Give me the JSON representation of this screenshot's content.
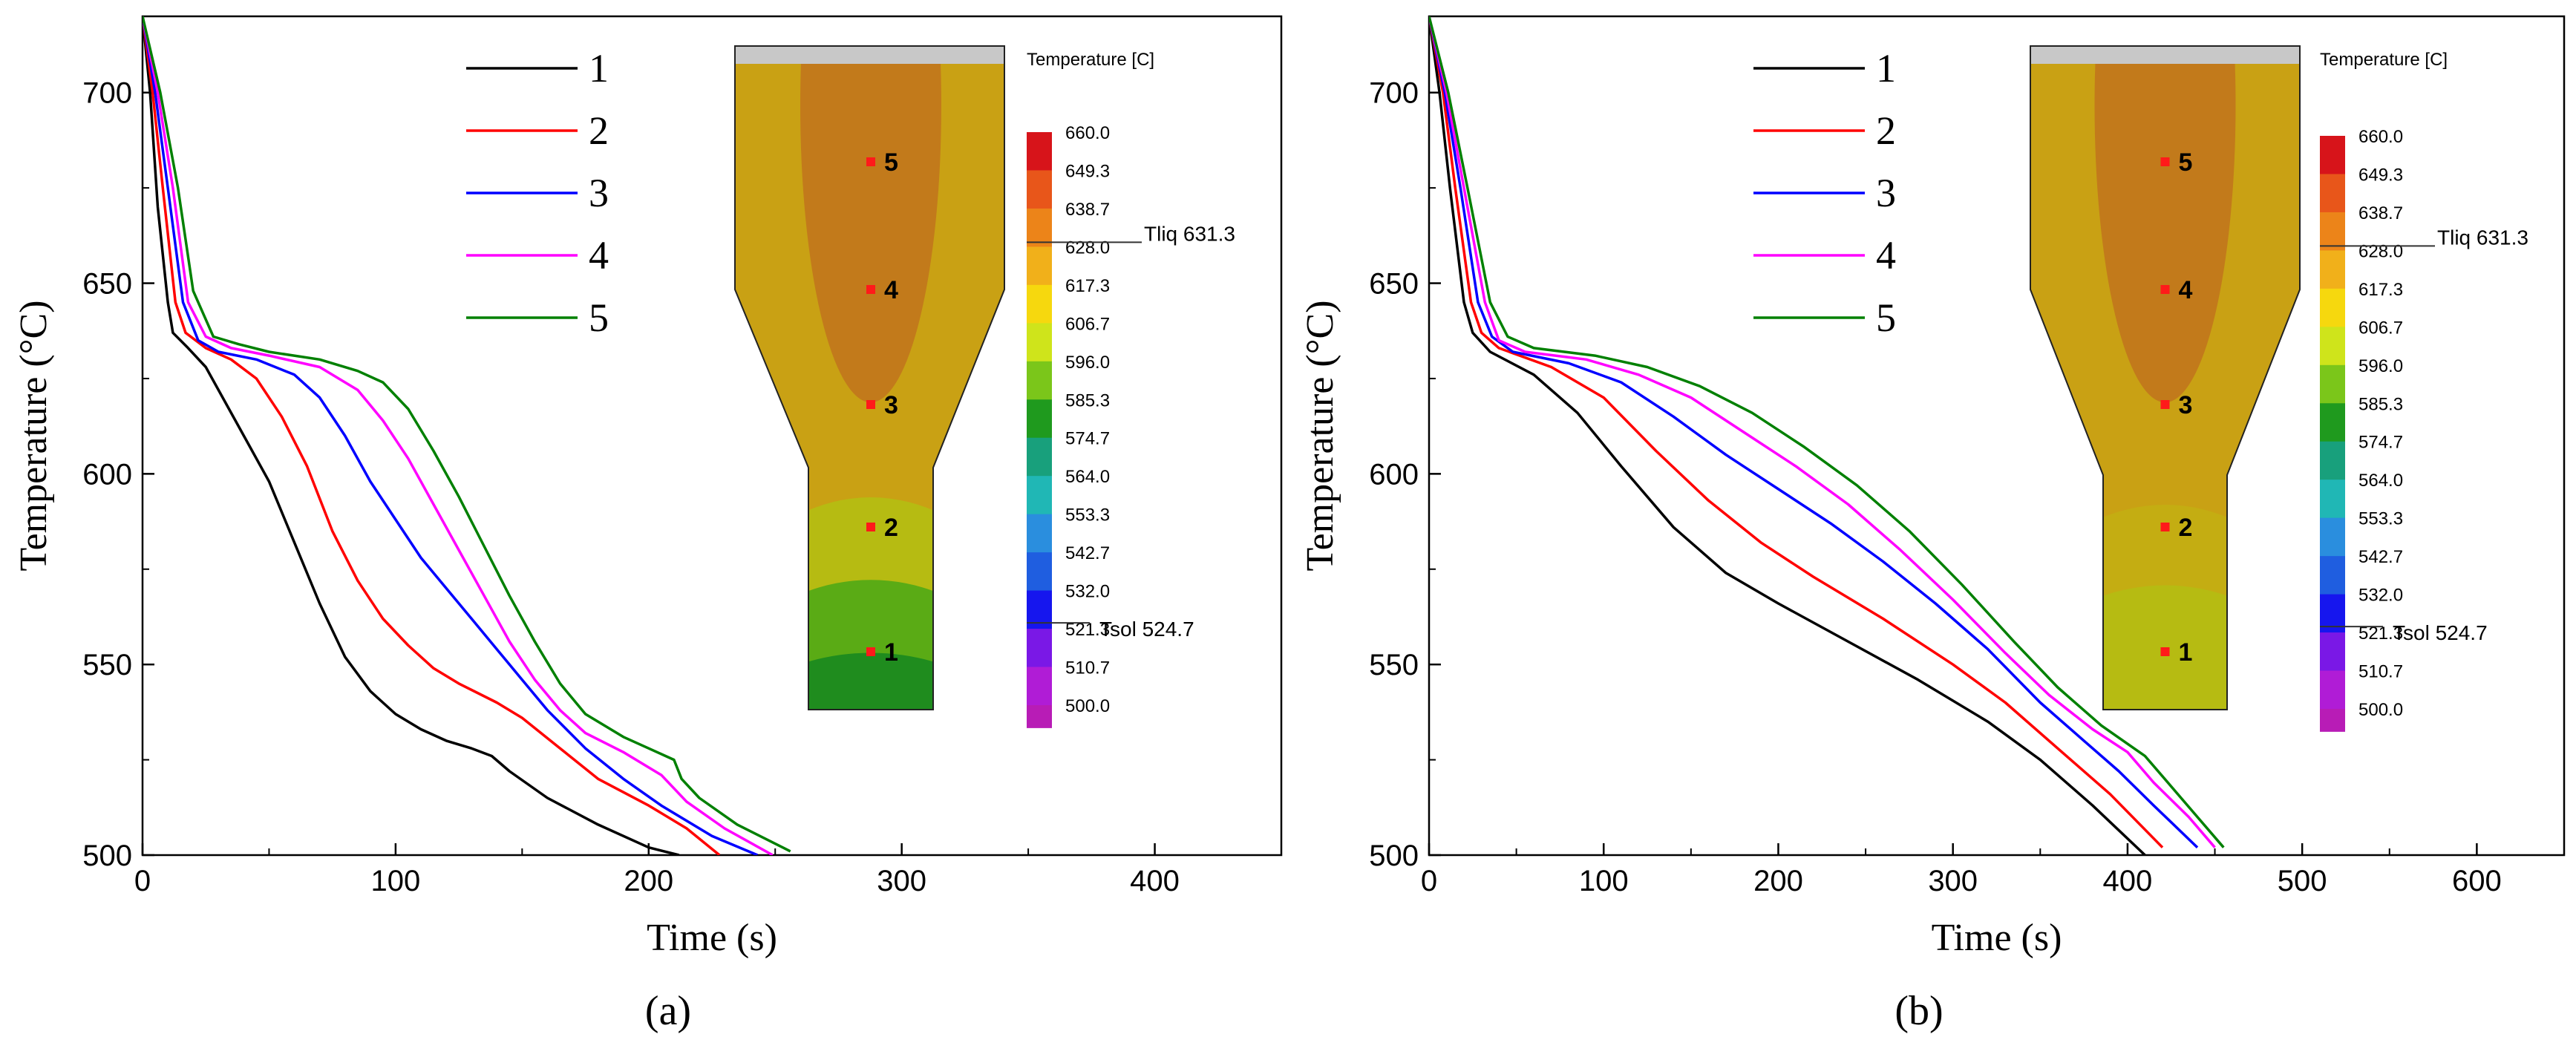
{
  "chart_data": [
    {
      "type": "line",
      "panel_label": "(a)",
      "xlabel": "Time (s)",
      "ylabel": "Temperature (°C)",
      "xlim": [
        0,
        450
      ],
      "ylim": [
        500,
        720
      ],
      "xticks": [
        0,
        100,
        200,
        300,
        400
      ],
      "yticks": [
        500,
        550,
        600,
        650,
        700
      ],
      "legend_position": "top-center",
      "series": [
        {
          "name": "1",
          "color": "#000000",
          "points": [
            [
              0,
              720
            ],
            [
              3,
              700
            ],
            [
              6,
              670
            ],
            [
              10,
              645
            ],
            [
              12,
              637
            ],
            [
              18,
              633
            ],
            [
              25,
              628
            ],
            [
              30,
              622
            ],
            [
              40,
              610
            ],
            [
              50,
              598
            ],
            [
              60,
              582
            ],
            [
              70,
              566
            ],
            [
              80,
              552
            ],
            [
              90,
              543
            ],
            [
              100,
              537
            ],
            [
              110,
              533
            ],
            [
              120,
              530
            ],
            [
              130,
              528
            ],
            [
              138,
              526
            ],
            [
              145,
              522
            ],
            [
              160,
              515
            ],
            [
              180,
              508
            ],
            [
              200,
              502
            ],
            [
              212,
              500
            ]
          ]
        },
        {
          "name": "2",
          "color": "#ff0000",
          "points": [
            [
              0,
              720
            ],
            [
              4,
              700
            ],
            [
              8,
              675
            ],
            [
              13,
              645
            ],
            [
              17,
              637
            ],
            [
              25,
              633
            ],
            [
              35,
              630
            ],
            [
              45,
              625
            ],
            [
              55,
              615
            ],
            [
              65,
              602
            ],
            [
              75,
              585
            ],
            [
              85,
              572
            ],
            [
              95,
              562
            ],
            [
              105,
              555
            ],
            [
              115,
              549
            ],
            [
              125,
              545
            ],
            [
              140,
              540
            ],
            [
              150,
              536
            ],
            [
              165,
              528
            ],
            [
              180,
              520
            ],
            [
              200,
              513
            ],
            [
              215,
              507
            ],
            [
              228,
              500
            ]
          ]
        },
        {
          "name": "3",
          "color": "#0000ff",
          "points": [
            [
              0,
              720
            ],
            [
              5,
              700
            ],
            [
              10,
              675
            ],
            [
              16,
              645
            ],
            [
              22,
              635
            ],
            [
              30,
              632
            ],
            [
              45,
              630
            ],
            [
              60,
              626
            ],
            [
              70,
              620
            ],
            [
              80,
              610
            ],
            [
              90,
              598
            ],
            [
              100,
              588
            ],
            [
              110,
              578
            ],
            [
              120,
              570
            ],
            [
              130,
              562
            ],
            [
              140,
              554
            ],
            [
              150,
              546
            ],
            [
              160,
              538
            ],
            [
              175,
              528
            ],
            [
              190,
              520
            ],
            [
              205,
              513
            ],
            [
              225,
              505
            ],
            [
              243,
              500
            ]
          ]
        },
        {
          "name": "4",
          "color": "#ff00ff",
          "points": [
            [
              0,
              720
            ],
            [
              6,
              700
            ],
            [
              12,
              675
            ],
            [
              18,
              645
            ],
            [
              25,
              636
            ],
            [
              35,
              633
            ],
            [
              50,
              631
            ],
            [
              70,
              628
            ],
            [
              85,
              622
            ],
            [
              95,
              614
            ],
            [
              105,
              604
            ],
            [
              115,
              592
            ],
            [
              125,
              580
            ],
            [
              135,
              568
            ],
            [
              145,
              556
            ],
            [
              155,
              546
            ],
            [
              165,
              538
            ],
            [
              175,
              532
            ],
            [
              190,
              527
            ],
            [
              205,
              521
            ],
            [
              215,
              514
            ],
            [
              230,
              507
            ],
            [
              249,
              500
            ]
          ]
        },
        {
          "name": "5",
          "color": "#008000",
          "points": [
            [
              0,
              720
            ],
            [
              7,
              700
            ],
            [
              14,
              675
            ],
            [
              20,
              648
            ],
            [
              28,
              636
            ],
            [
              38,
              634
            ],
            [
              50,
              632
            ],
            [
              70,
              630
            ],
            [
              85,
              627
            ],
            [
              95,
              624
            ],
            [
              105,
              617
            ],
            [
              115,
              606
            ],
            [
              125,
              594
            ],
            [
              135,
              581
            ],
            [
              145,
              568
            ],
            [
              155,
              556
            ],
            [
              165,
              545
            ],
            [
              175,
              537
            ],
            [
              190,
              531
            ],
            [
              200,
              528
            ],
            [
              210,
              525
            ],
            [
              213,
              520
            ],
            [
              220,
              515
            ],
            [
              235,
              508
            ],
            [
              256,
              501
            ]
          ]
        }
      ],
      "inset": {
        "title": "Temperature [C]",
        "colorbar_values": [
          "660.0",
          "649.3",
          "638.7",
          "628.0",
          "617.3",
          "606.7",
          "596.0",
          "585.3",
          "574.7",
          "564.0",
          "553.3",
          "542.7",
          "532.0",
          "521.3",
          "510.7",
          "500.0"
        ],
        "colorbar_colors": [
          "#d7141a",
          "#e8561a",
          "#ec8419",
          "#f1b01a",
          "#f6d80e",
          "#cfe41b",
          "#7bc61a",
          "#1f9a1e",
          "#18a07c",
          "#20b7b5",
          "#2a8ede",
          "#1f5ee0",
          "#1616ee",
          "#7a18e6",
          "#b01cd6",
          "#b81cb6"
        ],
        "tliq_label": "Tliq  631.3",
        "tsol_label": "Tsol  524.7",
        "points": [
          "5",
          "4",
          "3",
          "2",
          "1"
        ]
      }
    },
    {
      "type": "line",
      "panel_label": "(b)",
      "xlabel": "Time (s)",
      "ylabel": "Temperature (°C)",
      "xlim": [
        0,
        650
      ],
      "ylim": [
        500,
        720
      ],
      "xticks": [
        0,
        100,
        200,
        300,
        400,
        500,
        600
      ],
      "yticks": [
        500,
        550,
        600,
        650,
        700
      ],
      "legend_position": "top-center",
      "series": [
        {
          "name": "1",
          "color": "#000000",
          "points": [
            [
              0,
              720
            ],
            [
              6,
              700
            ],
            [
              12,
              675
            ],
            [
              20,
              645
            ],
            [
              25,
              637
            ],
            [
              35,
              632
            ],
            [
              60,
              626
            ],
            [
              85,
              616
            ],
            [
              110,
              602
            ],
            [
              140,
              586
            ],
            [
              170,
              574
            ],
            [
              200,
              566
            ],
            [
              240,
              556
            ],
            [
              280,
              546
            ],
            [
              320,
              535
            ],
            [
              350,
              525
            ],
            [
              380,
              513
            ],
            [
              410,
              500
            ]
          ]
        },
        {
          "name": "2",
          "color": "#ff0000",
          "points": [
            [
              0,
              720
            ],
            [
              8,
              700
            ],
            [
              15,
              675
            ],
            [
              24,
              645
            ],
            [
              30,
              637
            ],
            [
              40,
              633
            ],
            [
              70,
              628
            ],
            [
              100,
              620
            ],
            [
              130,
              606
            ],
            [
              160,
              593
            ],
            [
              190,
              582
            ],
            [
              220,
              573
            ],
            [
              260,
              562
            ],
            [
              300,
              550
            ],
            [
              330,
              540
            ],
            [
              360,
              528
            ],
            [
              390,
              516
            ],
            [
              420,
              502
            ]
          ]
        },
        {
          "name": "3",
          "color": "#0000ff",
          "points": [
            [
              0,
              720
            ],
            [
              9,
              700
            ],
            [
              18,
              675
            ],
            [
              28,
              645
            ],
            [
              36,
              636
            ],
            [
              48,
              632
            ],
            [
              80,
              629
            ],
            [
              110,
              624
            ],
            [
              140,
              615
            ],
            [
              170,
              605
            ],
            [
              200,
              596
            ],
            [
              230,
              587
            ],
            [
              260,
              577
            ],
            [
              290,
              566
            ],
            [
              320,
              554
            ],
            [
              350,
              540
            ],
            [
              375,
              530
            ],
            [
              395,
              522
            ],
            [
              415,
              513
            ],
            [
              440,
              502
            ]
          ]
        },
        {
          "name": "4",
          "color": "#ff00ff",
          "points": [
            [
              0,
              720
            ],
            [
              10,
              700
            ],
            [
              20,
              675
            ],
            [
              32,
              645
            ],
            [
              40,
              635
            ],
            [
              55,
              632
            ],
            [
              90,
              630
            ],
            [
              120,
              626
            ],
            [
              150,
              620
            ],
            [
              180,
              611
            ],
            [
              210,
              602
            ],
            [
              240,
              592
            ],
            [
              270,
              580
            ],
            [
              300,
              567
            ],
            [
              330,
              553
            ],
            [
              355,
              542
            ],
            [
              380,
              533
            ],
            [
              400,
              527
            ],
            [
              415,
              519
            ],
            [
              435,
              510
            ],
            [
              450,
              502
            ]
          ]
        },
        {
          "name": "5",
          "color": "#008000",
          "points": [
            [
              0,
              720
            ],
            [
              11,
              700
            ],
            [
              22,
              675
            ],
            [
              35,
              645
            ],
            [
              45,
              636
            ],
            [
              60,
              633
            ],
            [
              95,
              631
            ],
            [
              125,
              628
            ],
            [
              155,
              623
            ],
            [
              185,
              616
            ],
            [
              215,
              607
            ],
            [
              245,
              597
            ],
            [
              275,
              585
            ],
            [
              305,
              571
            ],
            [
              335,
              556
            ],
            [
              360,
              544
            ],
            [
              385,
              534
            ],
            [
              410,
              526
            ],
            [
              425,
              518
            ],
            [
              440,
              510
            ],
            [
              455,
              502
            ]
          ]
        }
      ],
      "inset": {
        "title": "Temperature [C]",
        "colorbar_values": [
          "660.0",
          "649.3",
          "638.7",
          "628.0",
          "617.3",
          "606.7",
          "596.0",
          "585.3",
          "574.7",
          "564.0",
          "553.3",
          "542.7",
          "532.0",
          "521.3",
          "510.7",
          "500.0"
        ],
        "colorbar_colors": [
          "#d7141a",
          "#e8561a",
          "#ec8419",
          "#f1b01a",
          "#f6d80e",
          "#cfe41b",
          "#7bc61a",
          "#1f9a1e",
          "#18a07c",
          "#20b7b5",
          "#2a8ede",
          "#1f5ee0",
          "#1616ee",
          "#7a18e6",
          "#b01cd6",
          "#b81cb6"
        ],
        "tliq_label": "Tliq  631.3",
        "tsol_label": "Tsol  524.7",
        "points": [
          "5",
          "4",
          "3",
          "2",
          "1"
        ]
      }
    }
  ]
}
